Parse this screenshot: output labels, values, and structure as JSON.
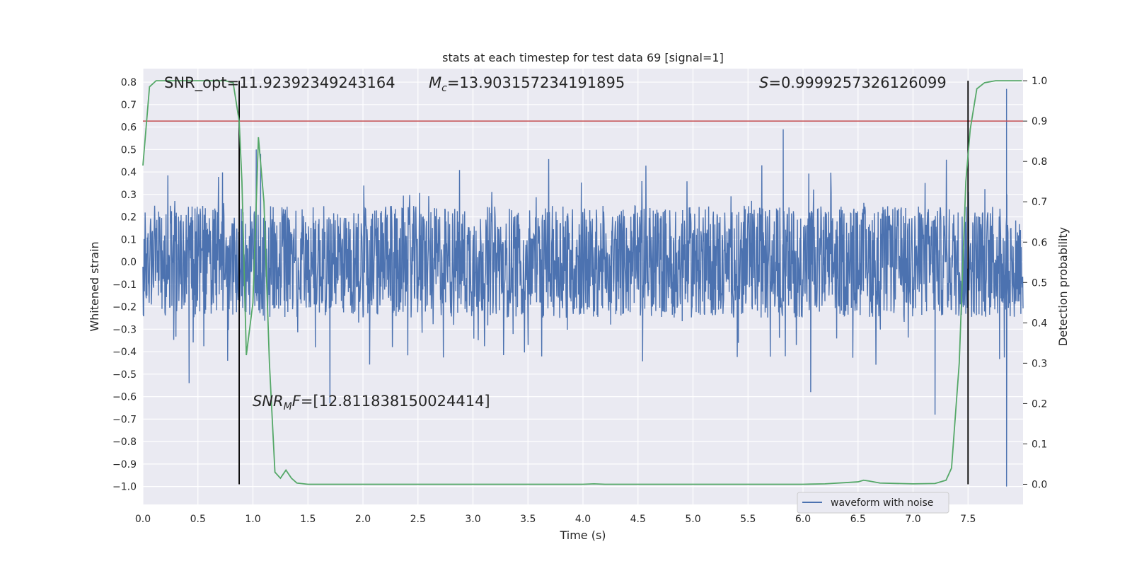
{
  "chart_data": {
    "type": "line",
    "title": "stats at each timestep for test data 69 [signal=1]",
    "xlabel": "Time (s)",
    "ylabel_left": "Whitened strain",
    "ylabel_right": "Detection probability",
    "xlim": [
      0.0,
      8.0
    ],
    "ylim_left": [
      -1.08,
      0.86
    ],
    "ylim_right": [
      -0.05,
      1.03
    ],
    "x_ticks": [
      "0.0",
      "0.5",
      "1.0",
      "1.5",
      "2.0",
      "2.5",
      "3.0",
      "3.5",
      "4.0",
      "4.5",
      "5.0",
      "5.5",
      "6.0",
      "6.5",
      "7.0",
      "7.5"
    ],
    "x_tick_values": [
      0.0,
      0.5,
      1.0,
      1.5,
      2.0,
      2.5,
      3.0,
      3.5,
      4.0,
      4.5,
      5.0,
      5.5,
      6.0,
      6.5,
      7.0,
      7.5
    ],
    "y_left_ticks": [
      "0.8",
      "0.7",
      "0.6",
      "0.5",
      "0.4",
      "0.3",
      "0.2",
      "0.1",
      "0.0",
      "−0.1",
      "−0.2",
      "−0.3",
      "−0.4",
      "−0.5",
      "−0.6",
      "−0.7",
      "−0.8",
      "−0.9",
      "−1.0"
    ],
    "y_left_tick_values": [
      0.8,
      0.7,
      0.6,
      0.5,
      0.4,
      0.3,
      0.2,
      0.1,
      0.0,
      -0.1,
      -0.2,
      -0.3,
      -0.4,
      -0.5,
      -0.6,
      -0.7,
      -0.8,
      -0.9,
      -1.0
    ],
    "y_right_ticks": [
      "1.0",
      "0.9",
      "0.8",
      "0.7",
      "0.6",
      "0.5",
      "0.4",
      "0.3",
      "0.2",
      "0.1",
      "0.0"
    ],
    "y_right_tick_values": [
      1.0,
      0.9,
      0.8,
      0.7,
      0.6,
      0.5,
      0.4,
      0.3,
      0.2,
      0.1,
      0.0
    ],
    "annotations": {
      "snr_opt": "SNR_opt=11.92392349243164",
      "mc_symbol": "M",
      "mc_sub": "c",
      "mc_value": "=13.903157234191895",
      "s_symbol": "S",
      "s_value": "=0.9999257326126099",
      "snr_mf_symbol": "SNR",
      "snr_mf_sub": "M",
      "snr_mf_f": "F",
      "snr_mf_value": "=[12.811838150024414]"
    },
    "threshold_line": {
      "axis": "right",
      "value": 0.9,
      "color": "#c44e52"
    },
    "vertical_lines": [
      0.875,
      7.5
    ],
    "legend": {
      "label": "waveform with noise",
      "position": "lower-right"
    },
    "series": [
      {
        "name": "waveform with noise",
        "axis": "left",
        "color": "#4c72b0",
        "generated": true,
        "core_amplitude": 0.25,
        "spikes": [
          {
            "x": 5.82,
            "y": 0.59
          },
          {
            "x": 7.85,
            "y": 0.77
          },
          {
            "x": 7.85,
            "y": -1.0
          },
          {
            "x": 1.03,
            "y": 0.5
          },
          {
            "x": 6.07,
            "y": -0.58
          },
          {
            "x": 7.2,
            "y": -0.68
          },
          {
            "x": 1.7,
            "y": -0.63
          },
          {
            "x": 0.42,
            "y": -0.54
          },
          {
            "x": 1.07,
            "y": 0.48
          }
        ]
      },
      {
        "name": "detection probability",
        "axis": "right",
        "color": "#55a868",
        "x": [
          0.0,
          0.06,
          0.12,
          0.25,
          0.5,
          0.75,
          0.82,
          0.875,
          0.9,
          0.94,
          1.0,
          1.05,
          1.1,
          1.15,
          1.2,
          1.25,
          1.3,
          1.35,
          1.4,
          1.5,
          1.75,
          2.0,
          2.5,
          3.0,
          3.5,
          4.0,
          4.1,
          4.2,
          4.5,
          5.0,
          5.5,
          6.0,
          6.2,
          6.5,
          6.55,
          6.6,
          6.7,
          7.0,
          7.2,
          7.3,
          7.35,
          7.42,
          7.48,
          7.52,
          7.58,
          7.65,
          7.75,
          7.9,
          7.99
        ],
        "y": [
          0.79,
          0.985,
          1.0,
          1.0,
          1.0,
          1.0,
          0.995,
          0.9,
          0.75,
          0.32,
          0.45,
          0.86,
          0.7,
          0.3,
          0.03,
          0.015,
          0.035,
          0.015,
          0.003,
          0.0,
          0.0,
          0.0,
          0.0,
          0.0,
          0.0,
          0.0,
          0.001,
          0.0,
          0.0,
          0.0,
          0.0,
          0.0,
          0.001,
          0.006,
          0.01,
          0.008,
          0.003,
          0.001,
          0.002,
          0.01,
          0.04,
          0.3,
          0.75,
          0.88,
          0.98,
          0.995,
          1.0,
          1.0,
          1.0
        ]
      }
    ]
  }
}
